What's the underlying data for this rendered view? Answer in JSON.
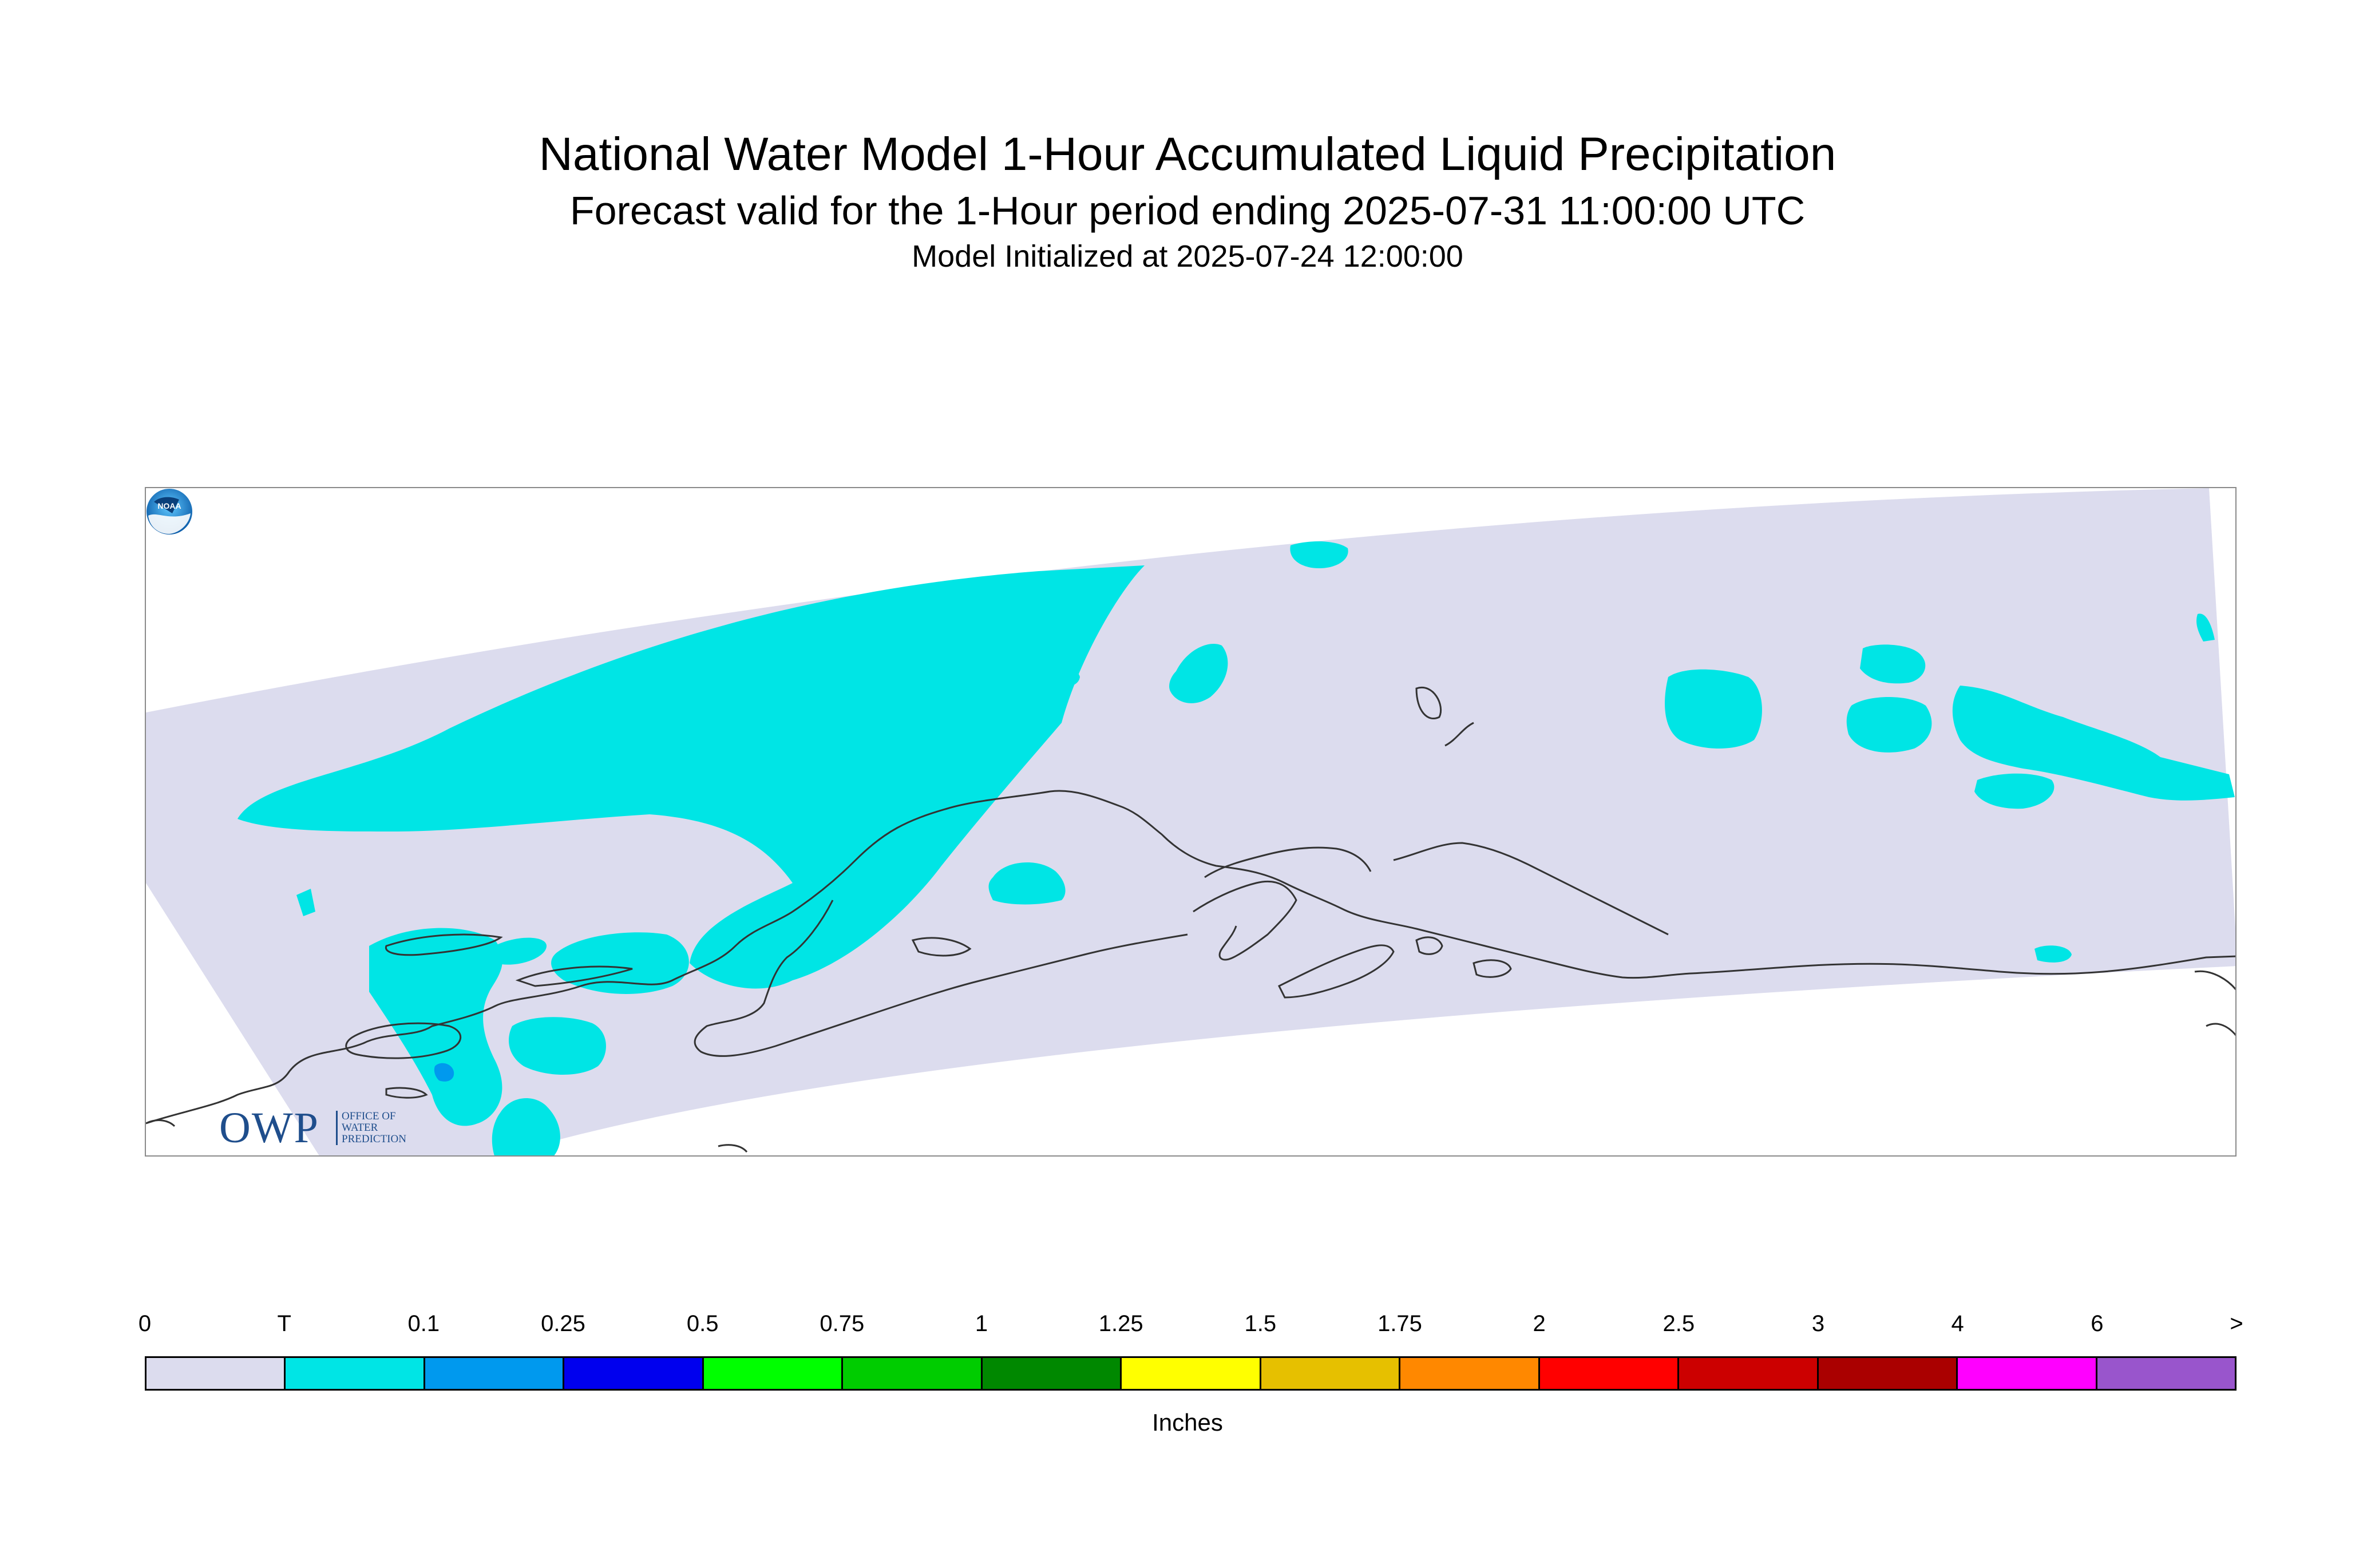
{
  "title": "National Water Model 1-Hour Accumulated Liquid Precipitation",
  "subtitle": "Forecast valid for the 1-Hour period ending 2025-07-31 11:00:00 UTC",
  "initialized": "Model Initialized at 2025-07-24 12:00:00",
  "logo_owp": {
    "mark": "OWP",
    "line1": "OFFICE OF",
    "line2": "WATER",
    "line3": "PREDICTION"
  },
  "logo_noaa": {
    "icon": "noaa-logo-icon",
    "text": "NOAA"
  },
  "colors": {
    "domain": "#dcdcee",
    "trace": "#00e5e5",
    "light_blue": "#0099ee",
    "coast": "#333333",
    "frame": "#8a8a8a"
  },
  "legend": {
    "units": "Inches",
    "ticks": [
      "0",
      "T",
      "0.1",
      "0.25",
      "0.5",
      "0.75",
      "1",
      "1.25",
      "1.5",
      "1.75",
      "2",
      "2.5",
      "3",
      "4",
      "6",
      ">"
    ],
    "colors": [
      "#dcdcee",
      "#00e5e5",
      "#0099ee",
      "#0000ee",
      "#00ff00",
      "#00cc00",
      "#008800",
      "#ffff00",
      "#e6c000",
      "#ff8800",
      "#ff0000",
      "#cc0000",
      "#aa0000",
      "#ff00ff",
      "#9955cc"
    ]
  }
}
